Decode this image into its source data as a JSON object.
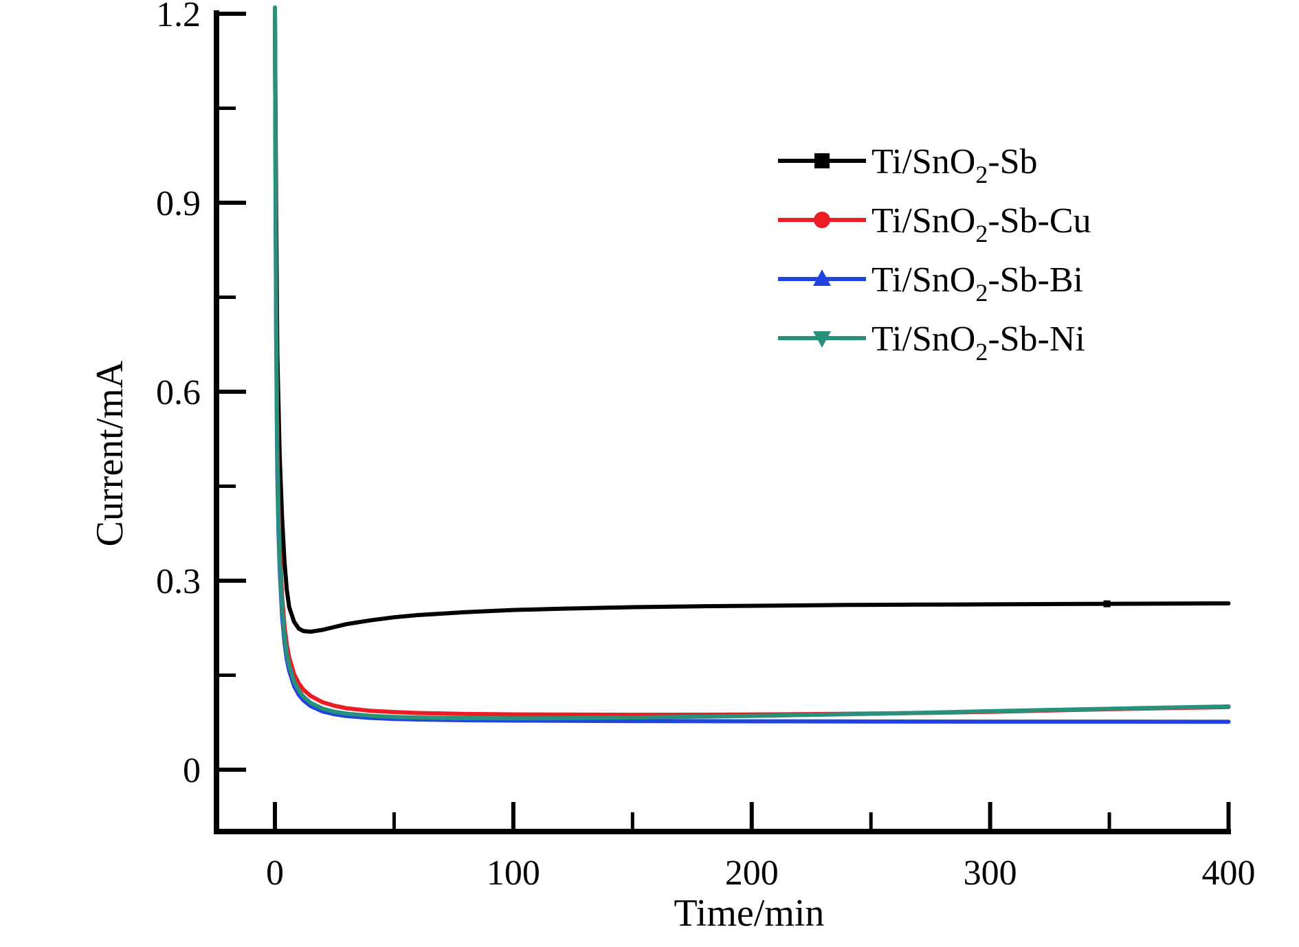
{
  "figure": {
    "background_color": "#ffffff",
    "axis_color": "#000000"
  },
  "chart_data": {
    "type": "line",
    "title": "",
    "xlabel": "Time/min",
    "ylabel": "Current/mA",
    "xlim": [
      -25,
      401
    ],
    "ylim": [
      -0.098,
      1.205
    ],
    "grid": false,
    "x_major_ticks": [
      "0",
      "100",
      "200",
      "300",
      "400"
    ],
    "x_minor_ticks": [
      50,
      150,
      250,
      350
    ],
    "y_major_ticks": [
      "0",
      "0.3",
      "0.6",
      "0.9",
      "1.2"
    ],
    "y_minor_ticks": [
      0.15,
      0.45,
      0.75,
      1.05
    ],
    "legend": {
      "position": "upper-right-inside",
      "entries": [
        "Ti/SnO2-Sb",
        "Ti/SnO2-Sb-Cu",
        "Ti/SnO2-Sb-Bi",
        "Ti/SnO2-Sb-Ni"
      ]
    },
    "series": [
      {
        "name": "Ti/SnO2-Sb",
        "display": {
          "prefix": "Ti/SnO",
          "sub": "2",
          "suffix": "-Sb"
        },
        "color": "#000000",
        "marker": "square",
        "marker_ts": [
          349
        ],
        "points": [
          [
            0,
            1.2
          ],
          [
            0.5,
            0.9
          ],
          [
            1,
            0.66
          ],
          [
            1.5,
            0.58
          ],
          [
            2,
            0.5
          ],
          [
            3,
            0.4
          ],
          [
            4,
            0.33
          ],
          [
            5,
            0.285
          ],
          [
            6,
            0.258
          ],
          [
            8,
            0.235
          ],
          [
            10,
            0.224
          ],
          [
            12,
            0.22
          ],
          [
            15,
            0.219
          ],
          [
            20,
            0.222
          ],
          [
            30,
            0.231
          ],
          [
            40,
            0.237
          ],
          [
            50,
            0.242
          ],
          [
            60,
            0.2455
          ],
          [
            80,
            0.25
          ],
          [
            100,
            0.2535
          ],
          [
            120,
            0.2555
          ],
          [
            150,
            0.258
          ],
          [
            180,
            0.2595
          ],
          [
            210,
            0.2605
          ],
          [
            240,
            0.2615
          ],
          [
            270,
            0.262
          ],
          [
            300,
            0.2625
          ],
          [
            330,
            0.263
          ],
          [
            360,
            0.2635
          ],
          [
            400,
            0.264
          ]
        ]
      },
      {
        "name": "Ti/SnO2-Sb-Cu",
        "display": {
          "prefix": "Ti/SnO",
          "sub": "2",
          "suffix": "-Sb-Cu"
        },
        "color": "#ed1c24",
        "marker": "circle",
        "marker_ts": [],
        "points": [
          [
            0,
            1.2
          ],
          [
            0.5,
            0.75
          ],
          [
            1,
            0.52
          ],
          [
            1.5,
            0.42
          ],
          [
            2,
            0.355
          ],
          [
            3,
            0.275
          ],
          [
            4,
            0.228
          ],
          [
            5,
            0.198
          ],
          [
            6,
            0.178
          ],
          [
            8,
            0.152
          ],
          [
            10,
            0.137
          ],
          [
            12,
            0.127
          ],
          [
            15,
            0.117
          ],
          [
            20,
            0.107
          ],
          [
            25,
            0.1015
          ],
          [
            30,
            0.0975
          ],
          [
            40,
            0.0935
          ],
          [
            50,
            0.0915
          ],
          [
            60,
            0.09
          ],
          [
            80,
            0.0885
          ],
          [
            100,
            0.0878
          ],
          [
            120,
            0.0875
          ],
          [
            150,
            0.0872
          ],
          [
            180,
            0.0873
          ],
          [
            210,
            0.0878
          ],
          [
            240,
            0.0888
          ],
          [
            270,
            0.09
          ],
          [
            300,
            0.092
          ],
          [
            330,
            0.0945
          ],
          [
            360,
            0.0968
          ],
          [
            400,
            0.0995
          ]
        ]
      },
      {
        "name": "Ti/SnO2-Sb-Bi",
        "display": {
          "prefix": "Ti/SnO",
          "sub": "2",
          "suffix": "-Sb-Bi"
        },
        "color": "#2143df",
        "marker": "triangle-up",
        "marker_ts": [],
        "points": [
          [
            0,
            1.2
          ],
          [
            0.5,
            0.7
          ],
          [
            1,
            0.47
          ],
          [
            1.5,
            0.38
          ],
          [
            2,
            0.32
          ],
          [
            3,
            0.245
          ],
          [
            4,
            0.202
          ],
          [
            5,
            0.175
          ],
          [
            6,
            0.157
          ],
          [
            8,
            0.133
          ],
          [
            10,
            0.119
          ],
          [
            12,
            0.11
          ],
          [
            15,
            0.101
          ],
          [
            20,
            0.0925
          ],
          [
            25,
            0.088
          ],
          [
            30,
            0.0852
          ],
          [
            40,
            0.0822
          ],
          [
            50,
            0.0806
          ],
          [
            60,
            0.0796
          ],
          [
            80,
            0.0785
          ],
          [
            100,
            0.078
          ],
          [
            150,
            0.0772
          ],
          [
            200,
            0.0768
          ],
          [
            250,
            0.0765
          ],
          [
            300,
            0.0763
          ],
          [
            350,
            0.0762
          ],
          [
            400,
            0.076
          ]
        ]
      },
      {
        "name": "Ti/SnO2-Sb-Ni",
        "display": {
          "prefix": "Ti/SnO",
          "sub": "2",
          "suffix": "-Sb-Ni"
        },
        "color": "#28917c",
        "marker": "triangle-down",
        "marker_ts": [],
        "points": [
          [
            0,
            1.21
          ],
          [
            0.5,
            0.72
          ],
          [
            1,
            0.49
          ],
          [
            1.5,
            0.4
          ],
          [
            2,
            0.335
          ],
          [
            3,
            0.258
          ],
          [
            4,
            0.212
          ],
          [
            5,
            0.184
          ],
          [
            6,
            0.165
          ],
          [
            8,
            0.14
          ],
          [
            10,
            0.126
          ],
          [
            12,
            0.116
          ],
          [
            15,
            0.106
          ],
          [
            20,
            0.097
          ],
          [
            25,
            0.092
          ],
          [
            30,
            0.089
          ],
          [
            40,
            0.0855
          ],
          [
            50,
            0.0838
          ],
          [
            60,
            0.0828
          ],
          [
            80,
            0.0818
          ],
          [
            100,
            0.0815
          ],
          [
            120,
            0.0818
          ],
          [
            150,
            0.0828
          ],
          [
            180,
            0.0843
          ],
          [
            210,
            0.086
          ],
          [
            240,
            0.088
          ],
          [
            270,
            0.0902
          ],
          [
            300,
            0.0928
          ],
          [
            330,
            0.0952
          ],
          [
            360,
            0.0975
          ],
          [
            400,
            0.1005
          ]
        ]
      }
    ]
  }
}
